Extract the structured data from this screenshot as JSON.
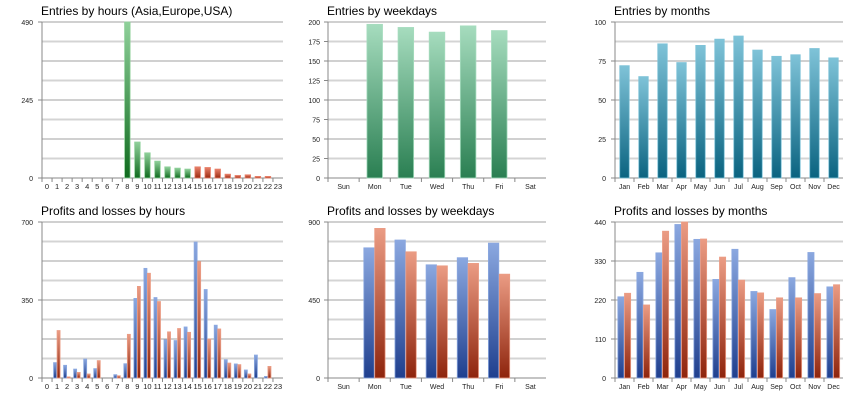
{
  "colors": {
    "green_top": "#8fd09a",
    "green_bottom": "#0f6b1e",
    "red_top": "#e8806a",
    "red_bottom": "#9a2a10",
    "mint_top": "#a6dcbe",
    "mint_bottom": "#2a7f52",
    "teal_top": "#7fc3d8",
    "teal_bottom": "#0a6380",
    "blue_top": "#8ba8e0",
    "blue_bottom": "#1f3f8e",
    "salmon_top": "#eb9c84",
    "salmon_bottom": "#8e240c",
    "grid_major": "#a0a0a0",
    "grid_minor": "#d4d4d4"
  },
  "chart_data": [
    {
      "id": "entries-hours",
      "type": "bar",
      "title": "Entries by hours (Asia,Europe,USA)",
      "categories": [
        "0",
        "1",
        "2",
        "3",
        "4",
        "5",
        "6",
        "7",
        "8",
        "9",
        "10",
        "11",
        "12",
        "13",
        "14",
        "15",
        "16",
        "17",
        "18",
        "19",
        "20",
        "21",
        "22",
        "23"
      ],
      "values": [
        0,
        0,
        0,
        0,
        0,
        0,
        0,
        0,
        490,
        113,
        79,
        53,
        35,
        31,
        28,
        35,
        33,
        28,
        12,
        8,
        10,
        5,
        5,
        0
      ],
      "bar_colors": [
        "green",
        "green",
        "green",
        "green",
        "green",
        "green",
        "green",
        "green",
        "green",
        "green",
        "green",
        "green",
        "green",
        "green",
        "green",
        "red",
        "red",
        "red",
        "red",
        "red",
        "red",
        "red",
        "red",
        "red"
      ],
      "ylim": [
        0,
        490
      ],
      "yticks": [
        0,
        245,
        490
      ],
      "grid_divisions": 8,
      "xlabel": "",
      "ylabel": ""
    },
    {
      "id": "entries-weekdays",
      "type": "bar",
      "title": "Entries by weekdays",
      "categories": [
        "Sun",
        "Mon",
        "Tue",
        "Wed",
        "Thu",
        "Fri",
        "Sat"
      ],
      "values": [
        0,
        197,
        193,
        187,
        195,
        189,
        0
      ],
      "bar_colors": [
        "mint",
        "mint",
        "mint",
        "mint",
        "mint",
        "mint",
        "mint"
      ],
      "ylim": [
        0,
        200
      ],
      "yticks": [
        0,
        25,
        50,
        75,
        100,
        125,
        150,
        175,
        200
      ],
      "grid_divisions": 8,
      "xlabel": "",
      "ylabel": ""
    },
    {
      "id": "entries-months",
      "type": "bar",
      "title": "Entries by months",
      "categories": [
        "Jan",
        "Feb",
        "Mar",
        "Apr",
        "May",
        "Jun",
        "Jul",
        "Aug",
        "Sep",
        "Oct",
        "Nov",
        "Dec"
      ],
      "values": [
        72,
        65,
        86,
        74,
        85,
        89,
        91,
        82,
        78,
        79,
        83,
        77
      ],
      "bar_colors": [
        "teal",
        "teal",
        "teal",
        "teal",
        "teal",
        "teal",
        "teal",
        "teal",
        "teal",
        "teal",
        "teal",
        "teal"
      ],
      "ylim": [
        0,
        100
      ],
      "yticks": [
        0,
        25,
        50,
        75,
        100
      ],
      "grid_divisions": 8,
      "xlabel": "",
      "ylabel": ""
    },
    {
      "id": "pl-hours",
      "type": "bar",
      "title": "Profits and losses by hours",
      "categories": [
        "0",
        "1",
        "2",
        "3",
        "4",
        "5",
        "6",
        "7",
        "8",
        "9",
        "10",
        "11",
        "12",
        "13",
        "14",
        "15",
        "16",
        "17",
        "18",
        "19",
        "20",
        "21",
        "22",
        "23"
      ],
      "series": [
        {
          "name": "Profits",
          "color": "blue",
          "values": [
            0,
            69,
            57,
            40,
            85,
            42,
            0,
            15,
            64,
            357,
            492,
            361,
            171,
            168,
            229,
            610,
            397,
            237,
            82,
            63,
            36,
            103,
            7,
            0
          ]
        },
        {
          "name": "Losses",
          "color": "salmon",
          "values": [
            0,
            213,
            5,
            25,
            18,
            78,
            0,
            10,
            196,
            411,
            470,
            343,
            207,
            222,
            205,
            522,
            175,
            220,
            67,
            60,
            18,
            0,
            52,
            0
          ]
        }
      ],
      "ylim": [
        0,
        700
      ],
      "yticks": [
        0,
        350,
        700
      ],
      "grid_divisions": 8,
      "xlabel": "",
      "ylabel": ""
    },
    {
      "id": "pl-weekdays",
      "type": "bar",
      "title": "Profits and losses by weekdays",
      "categories": [
        "Sun",
        "Mon",
        "Tue",
        "Wed",
        "Thu",
        "Fri",
        "Sat"
      ],
      "series": [
        {
          "name": "Profits",
          "color": "blue",
          "values": [
            0,
            751,
            796,
            653,
            694,
            778,
            0
          ]
        },
        {
          "name": "Losses",
          "color": "salmon",
          "values": [
            0,
            863,
            728,
            647,
            661,
            599,
            0
          ]
        }
      ],
      "ylim": [
        0,
        900
      ],
      "yticks": [
        0,
        450,
        900
      ],
      "grid_divisions": 8,
      "xlabel": "",
      "ylabel": ""
    },
    {
      "id": "pl-months",
      "type": "bar",
      "title": "Profits and losses by months",
      "categories": [
        "Jan",
        "Feb",
        "Mar",
        "Apr",
        "May",
        "Jun",
        "Jul",
        "Aug",
        "Sep",
        "Oct",
        "Nov",
        "Dec"
      ],
      "series": [
        {
          "name": "Profits",
          "color": "blue",
          "values": [
            229,
            298,
            353,
            433,
            391,
            278,
            363,
            244,
            193,
            283,
            354,
            257
          ]
        },
        {
          "name": "Losses",
          "color": "salmon",
          "values": [
            239,
            206,
            414,
            440,
            392,
            341,
            276,
            240,
            226,
            226,
            238,
            263
          ]
        }
      ],
      "ylim": [
        0,
        440
      ],
      "yticks": [
        0,
        110,
        220,
        330,
        440
      ],
      "grid_divisions": 8,
      "xlabel": "",
      "ylabel": ""
    }
  ]
}
